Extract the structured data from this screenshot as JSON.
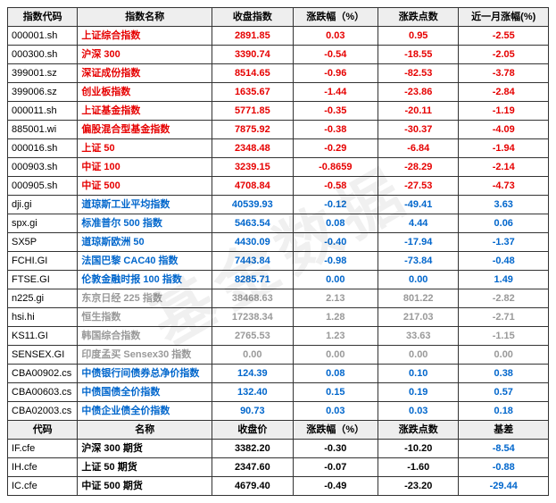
{
  "colors": {
    "red": "#e60000",
    "blue": "#0066cc",
    "gray": "#999999",
    "black": "#000000",
    "header_bg": "#eeeeee",
    "border": "#333333"
  },
  "watermark": "基金数据",
  "header1": {
    "code": "指数代码",
    "name": "指数名称",
    "close": "收盘指数",
    "chg": "涨跌幅（%）",
    "pts": "涨跌点数",
    "mon": "近一月涨幅(%)"
  },
  "rows1": [
    {
      "code": "000001.sh",
      "name": "上证综合指数",
      "close": "2891.85",
      "chg": "0.03",
      "pts": "0.95",
      "mon": "-2.55",
      "cls": "red"
    },
    {
      "code": "000300.sh",
      "name": "沪深 300",
      "close": "3390.74",
      "chg": "-0.54",
      "pts": "-18.55",
      "mon": "-2.05",
      "cls": "red"
    },
    {
      "code": "399001.sz",
      "name": "深证成份指数",
      "close": "8514.65",
      "chg": "-0.96",
      "pts": "-82.53",
      "mon": "-3.78",
      "cls": "red"
    },
    {
      "code": "399006.sz",
      "name": "创业板指数",
      "close": "1635.67",
      "chg": "-1.44",
      "pts": "-23.86",
      "mon": "-2.84",
      "cls": "red"
    },
    {
      "code": "000011.sh",
      "name": "上证基金指数",
      "close": "5771.85",
      "chg": "-0.35",
      "pts": "-20.11",
      "mon": "-1.19",
      "cls": "red"
    },
    {
      "code": "885001.wi",
      "name": "偏股混合型基金指数",
      "close": "7875.92",
      "chg": "-0.38",
      "pts": "-30.37",
      "mon": "-4.09",
      "cls": "red"
    },
    {
      "code": "000016.sh",
      "name": "上证 50",
      "close": "2348.48",
      "chg": "-0.29",
      "pts": "-6.84",
      "mon": "-1.94",
      "cls": "red"
    },
    {
      "code": "000903.sh",
      "name": "中证 100",
      "close": "3239.15",
      "chg": "-0.8659",
      "pts": "-28.29",
      "mon": "-2.14",
      "cls": "red"
    },
    {
      "code": "000905.sh",
      "name": "中证 500",
      "close": "4708.84",
      "chg": "-0.58",
      "pts": "-27.53",
      "mon": "-4.73",
      "cls": "red"
    },
    {
      "code": "dji.gi",
      "name": "道琼斯工业平均指数",
      "close": "40539.93",
      "chg": "-0.12",
      "pts": "-49.41",
      "mon": "3.63",
      "cls": "blue"
    },
    {
      "code": "spx.gi",
      "name": "标准普尔 500 指数",
      "close": "5463.54",
      "chg": "0.08",
      "pts": "4.44",
      "mon": "0.06",
      "cls": "blue"
    },
    {
      "code": "SX5P",
      "name": "道琼斯欧洲 50",
      "close": "4430.09",
      "chg": "-0.40",
      "pts": "-17.94",
      "mon": "-1.37",
      "cls": "blue"
    },
    {
      "code": "FCHI.GI",
      "name": "法国巴黎 CAC40 指数",
      "close": "7443.84",
      "chg": "-0.98",
      "pts": "-73.84",
      "mon": "-0.48",
      "cls": "blue"
    },
    {
      "code": "FTSE.GI",
      "name": "伦敦金融时报 100 指数",
      "close": "8285.71",
      "chg": "0.00",
      "pts": "0.00",
      "mon": "1.49",
      "cls": "blue"
    },
    {
      "code": "n225.gi",
      "name": "东京日经 225 指数",
      "close": "38468.63",
      "chg": "2.13",
      "pts": "801.22",
      "mon": "-2.82",
      "cls": "gray"
    },
    {
      "code": "hsi.hi",
      "name": "恒生指数",
      "close": "17238.34",
      "chg": "1.28",
      "pts": "217.03",
      "mon": "-2.71",
      "cls": "gray"
    },
    {
      "code": "KS11.GI",
      "name": "韩国综合指数",
      "close": "2765.53",
      "chg": "1.23",
      "pts": "33.63",
      "mon": "-1.15",
      "cls": "gray"
    },
    {
      "code": "SENSEX.GI",
      "name": "印度孟买 Sensex30 指数",
      "close": "0.00",
      "chg": "0.00",
      "pts": "0.00",
      "mon": "0.00",
      "cls": "gray"
    },
    {
      "code": "CBA00902.cs",
      "name": "中债银行间债券总净价指数",
      "close": "124.39",
      "chg": "0.08",
      "pts": "0.10",
      "mon": "0.38",
      "cls": "blue"
    },
    {
      "code": "CBA00603.cs",
      "name": "中债国债全价指数",
      "close": "132.40",
      "chg": "0.15",
      "pts": "0.19",
      "mon": "0.57",
      "cls": "blue"
    },
    {
      "code": "CBA02003.cs",
      "name": "中债企业债全价指数",
      "close": "90.73",
      "chg": "0.03",
      "pts": "0.03",
      "mon": "0.18",
      "cls": "blue"
    }
  ],
  "header2": {
    "code": "代码",
    "name": "名称",
    "close": "收盘价",
    "chg": "涨跌幅（%）",
    "pts": "涨跌点数",
    "mon": "基差"
  },
  "rows2": [
    {
      "code": "IF.cfe",
      "name": "沪深 300 期货",
      "close": "3382.20",
      "chg": "-0.30",
      "pts": "-10.20",
      "mon": "-8.54"
    },
    {
      "code": "IH.cfe",
      "name": "上证 50 期货",
      "close": "2347.60",
      "chg": "-0.07",
      "pts": "-1.60",
      "mon": "-0.88"
    },
    {
      "code": "IC.cfe",
      "name": "中证 500 期货",
      "close": "4679.40",
      "chg": "-0.49",
      "pts": "-23.20",
      "mon": "-29.44"
    }
  ]
}
